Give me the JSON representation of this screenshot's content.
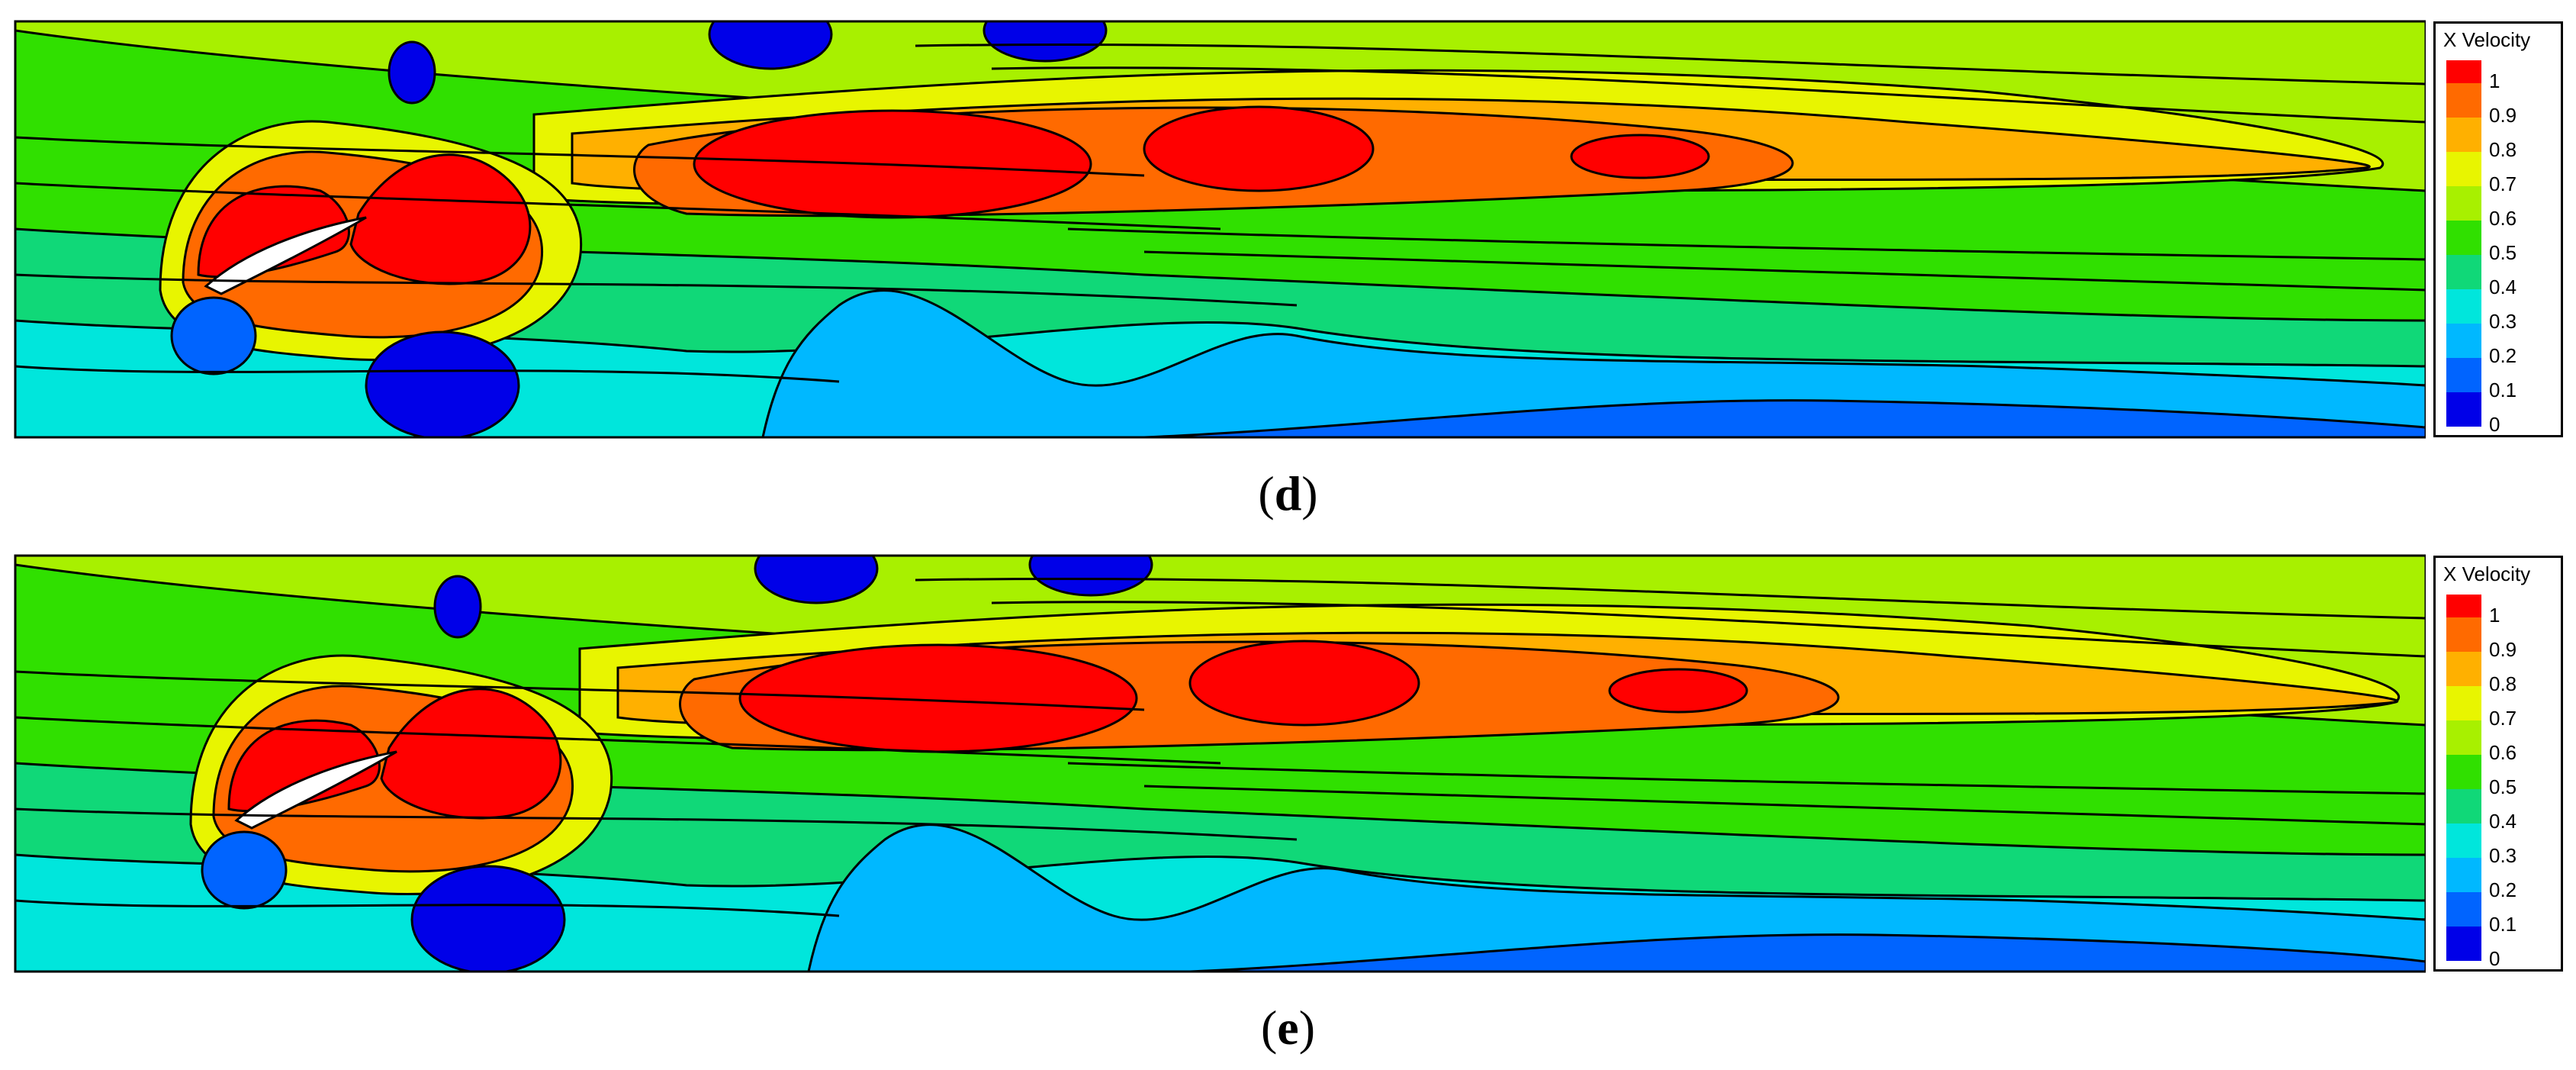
{
  "chart_data": [
    {
      "type": "heatmap",
      "panel_label": "d",
      "colorbar": {
        "title": "X Velocity",
        "levels": [
          1,
          0.9,
          0.8,
          0.7,
          0.6,
          0.5,
          0.4,
          0.3,
          0.2,
          0.1,
          0
        ],
        "tick_labels": [
          "1",
          "0.9",
          "0.8",
          "0.7",
          "0.6",
          "0.5",
          "0.4",
          "0.3",
          "0.2",
          "0.1",
          "0"
        ],
        "colors": [
          "#ff0000",
          "#ff6a00",
          "#ffb000",
          "#e8f500",
          "#a8f000",
          "#30e000",
          "#10d878",
          "#00e6dc",
          "#00b8ff",
          "#0064ff",
          "#0000e8"
        ]
      },
      "zlim": [
        0,
        1
      ]
    },
    {
      "type": "heatmap",
      "panel_label": "e",
      "colorbar": {
        "title": "X Velocity",
        "levels": [
          1,
          0.9,
          0.8,
          0.7,
          0.6,
          0.5,
          0.4,
          0.3,
          0.2,
          0.1,
          0
        ],
        "tick_labels": [
          "1",
          "0.9",
          "0.8",
          "0.7",
          "0.6",
          "0.5",
          "0.4",
          "0.3",
          "0.2",
          "0.1",
          "0"
        ],
        "colors": [
          "#ff0000",
          "#ff6a00",
          "#ffb000",
          "#e8f500",
          "#a8f000",
          "#30e000",
          "#10d878",
          "#00e6dc",
          "#00b8ff",
          "#0064ff",
          "#0000e8"
        ]
      },
      "zlim": [
        0,
        1
      ]
    }
  ],
  "captions": {
    "d": "d",
    "e": "e"
  }
}
